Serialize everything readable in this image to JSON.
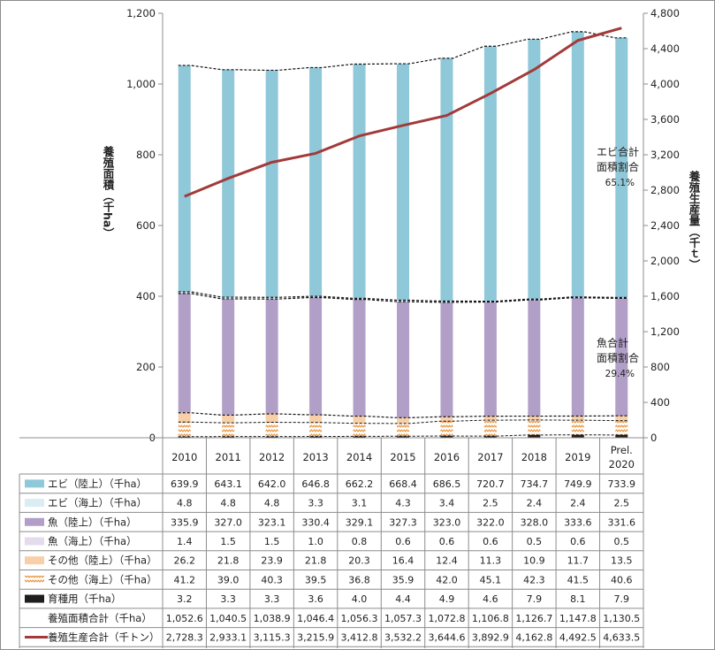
{
  "chart_data": {
    "type": "bar",
    "stacked": true,
    "categories": [
      "2010",
      "2011",
      "2012",
      "2013",
      "2014",
      "2015",
      "2016",
      "2017",
      "2018",
      "2019",
      "Prel.\n2020"
    ],
    "y_left": {
      "label": "養殖面積（千ha）",
      "min": 0,
      "max": 1200,
      "step": 200,
      "ticks": [
        "0",
        "200",
        "400",
        "600",
        "800",
        "1,000",
        "1,200"
      ]
    },
    "y_right": {
      "label": "養殖生産量（千ｔ）",
      "min": 0,
      "max": 4800,
      "step": 400,
      "ticks": [
        "0",
        "400",
        "800",
        "1,200",
        "1,600",
        "2,000",
        "2,400",
        "2,800",
        "3,200",
        "3,600",
        "4,000",
        "4,400",
        "4,800"
      ]
    },
    "series": [
      {
        "name": "エビ（陸上）（千ha）",
        "color": "#8fc8d8",
        "kind": "bar",
        "values": [
          639.9,
          643.1,
          642.0,
          646.8,
          662.2,
          668.4,
          686.5,
          720.7,
          734.7,
          749.9,
          733.9
        ],
        "labels": [
          "639.9",
          "643.1",
          "642.0",
          "646.8",
          "662.2",
          "668.4",
          "686.5",
          "720.7",
          "734.7",
          "749.9",
          "733.9"
        ]
      },
      {
        "name": "エビ（海上）（千ha）",
        "color": "#d9edf3",
        "kind": "bar",
        "values": [
          4.8,
          4.8,
          4.8,
          3.3,
          3.1,
          4.3,
          3.4,
          2.5,
          2.4,
          2.4,
          2.5
        ],
        "labels": [
          "4.8",
          "4.8",
          "4.8",
          "3.3",
          "3.1",
          "4.3",
          "3.4",
          "2.5",
          "2.4",
          "2.4",
          "2.5"
        ]
      },
      {
        "name": "魚（陸上）（千ha）",
        "color": "#b19fc8",
        "kind": "bar",
        "values": [
          335.9,
          327.0,
          323.1,
          330.4,
          329.1,
          327.3,
          323.0,
          322.0,
          328.0,
          333.6,
          331.6
        ],
        "labels": [
          "335.9",
          "327.0",
          "323.1",
          "330.4",
          "329.1",
          "327.3",
          "323.0",
          "322.0",
          "328.0",
          "333.6",
          "331.6"
        ]
      },
      {
        "name": "魚（海上）（千ha）",
        "color": "#e4dced",
        "kind": "bar",
        "values": [
          1.4,
          1.5,
          1.5,
          1.0,
          0.8,
          0.6,
          0.6,
          0.6,
          0.5,
          0.6,
          0.5
        ],
        "labels": [
          "1.4",
          "1.5",
          "1.5",
          "1.0",
          "0.8",
          "0.6",
          "0.6",
          "0.6",
          "0.5",
          "0.6",
          "0.5"
        ]
      },
      {
        "name": "その他（陸上）（千ha）",
        "color": "#f8cfa8",
        "kind": "bar",
        "values": [
          26.2,
          21.8,
          23.9,
          21.8,
          20.3,
          16.4,
          12.4,
          11.3,
          10.9,
          11.7,
          13.5
        ],
        "labels": [
          "26.2",
          "21.8",
          "23.9",
          "21.8",
          "20.3",
          "16.4",
          "12.4",
          "11.3",
          "10.9",
          "11.7",
          "13.5"
        ]
      },
      {
        "name": "その他（海上）（千ha）",
        "color": "#e8913a",
        "kind": "bar-zigzag",
        "values": [
          41.2,
          39.0,
          40.3,
          39.5,
          36.8,
          35.9,
          42.0,
          45.1,
          42.3,
          41.5,
          40.6
        ],
        "labels": [
          "41.2",
          "39.0",
          "40.3",
          "39.5",
          "36.8",
          "35.9",
          "42.0",
          "45.1",
          "42.3",
          "41.5",
          "40.6"
        ]
      },
      {
        "name": "育種用（千ha）",
        "color": "#1e1e1e",
        "kind": "bar",
        "values": [
          3.2,
          3.3,
          3.3,
          3.6,
          4.0,
          4.4,
          4.9,
          4.6,
          7.9,
          8.1,
          7.9
        ],
        "labels": [
          "3.2",
          "3.3",
          "3.3",
          "3.6",
          "4.0",
          "4.4",
          "4.9",
          "4.6",
          "7.9",
          "8.1",
          "7.9"
        ]
      },
      {
        "name": "養殖面積合計（千ha）",
        "color": "#000000",
        "kind": "none",
        "values": [
          1052.6,
          1040.5,
          1038.9,
          1046.4,
          1056.3,
          1057.3,
          1072.8,
          1106.8,
          1126.7,
          1147.8,
          1130.5
        ],
        "labels": [
          "1,052.6",
          "1,040.5",
          "1,038.9",
          "1,046.4",
          "1,056.3",
          "1,057.3",
          "1,072.8",
          "1,106.8",
          "1,126.7",
          "1,147.8",
          "1,130.5"
        ]
      },
      {
        "name": "養殖生産合計（千トン）",
        "color": "#a33a3a",
        "kind": "line",
        "axis": "right",
        "values": [
          2728.3,
          2933.1,
          3115.3,
          3215.9,
          3412.8,
          3532.2,
          3644.6,
          3892.9,
          4162.8,
          4492.5,
          4633.5
        ],
        "labels": [
          "2,728.3",
          "2,933.1",
          "3,115.3",
          "3,215.9",
          "3,412.8",
          "3,532.2",
          "3,644.6",
          "3,892.9",
          "4,162.8",
          "4,492.5",
          "4,633.5"
        ]
      }
    ],
    "annotations": [
      {
        "id": "shrimp",
        "lines": [
          "エビ合計",
          "面積割合",
          "65.1%"
        ]
      },
      {
        "id": "fish",
        "lines": [
          "魚合計",
          "面積割合",
          "29.4%"
        ]
      }
    ]
  }
}
